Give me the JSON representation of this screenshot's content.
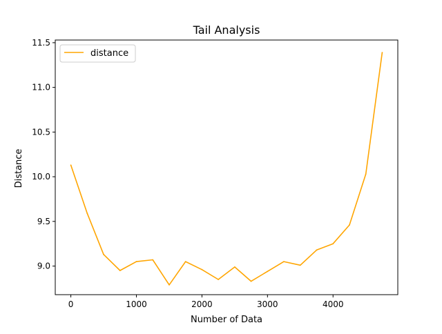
{
  "chart_data": {
    "type": "line",
    "title": "Tail Analysis",
    "xlabel": "Number of Data",
    "ylabel": "Distance",
    "xlim": [
      -238,
      4988
    ],
    "ylim": [
      8.68,
      11.53
    ],
    "xticks": [
      0,
      1000,
      2000,
      3000,
      4000
    ],
    "xtick_labels": [
      "0",
      "1000",
      "2000",
      "3000",
      "4000"
    ],
    "yticks": [
      9.0,
      9.5,
      10.0,
      10.5,
      11.0,
      11.5
    ],
    "ytick_labels": [
      "9.0",
      "9.5",
      "10.0",
      "10.5",
      "11.0",
      "11.5"
    ],
    "grid": false,
    "legend_position": "upper-left",
    "series": [
      {
        "name": "distance",
        "color": "#ffa500",
        "x": [
          0,
          250,
          500,
          750,
          1000,
          1250,
          1500,
          1750,
          2000,
          2250,
          2500,
          2750,
          3000,
          3250,
          3500,
          3750,
          4000,
          4250,
          4500,
          4750
        ],
        "y": [
          10.13,
          9.59,
          9.13,
          8.95,
          9.05,
          9.07,
          8.79,
          9.05,
          8.96,
          8.85,
          8.99,
          8.83,
          8.94,
          9.05,
          9.01,
          9.18,
          9.25,
          9.46,
          10.03,
          11.39
        ]
      }
    ]
  }
}
